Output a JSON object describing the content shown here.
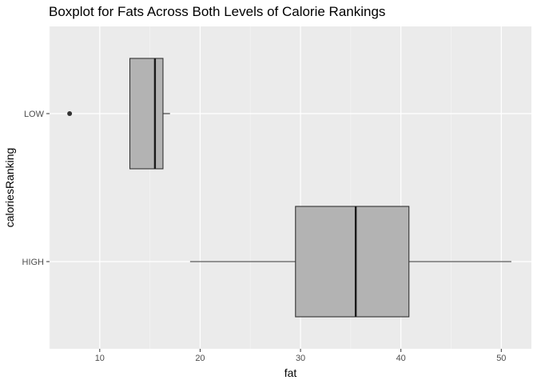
{
  "chart_data": {
    "type": "boxplot",
    "orientation": "horizontal",
    "title": "Boxplot for Fats Across Both Levels of Calorie Rankings",
    "xlabel": "fat",
    "ylabel": "caloriesRanking",
    "xlim": [
      5,
      53
    ],
    "x_ticks": [
      10,
      20,
      30,
      40,
      50
    ],
    "x_tick_labels": [
      "10",
      "20",
      "30",
      "40",
      "50"
    ],
    "categories": [
      "LOW",
      "HIGH"
    ],
    "boxes": [
      {
        "category": "LOW",
        "whisker_low": 13.0,
        "q1": 13.0,
        "median": 15.5,
        "q3": 16.3,
        "whisker_high": 17.0,
        "outliers": [
          7.0
        ]
      },
      {
        "category": "HIGH",
        "whisker_low": 19.0,
        "q1": 29.5,
        "median": 35.5,
        "q3": 40.8,
        "whisker_high": 51.0,
        "outliers": []
      }
    ],
    "grid": true,
    "colors": {
      "panel": "#ebebeb",
      "grid_major": "#ffffff",
      "grid_minor": "#f5f5f5",
      "box_fill": "#b3b3b3",
      "box_line": "#333333"
    }
  }
}
